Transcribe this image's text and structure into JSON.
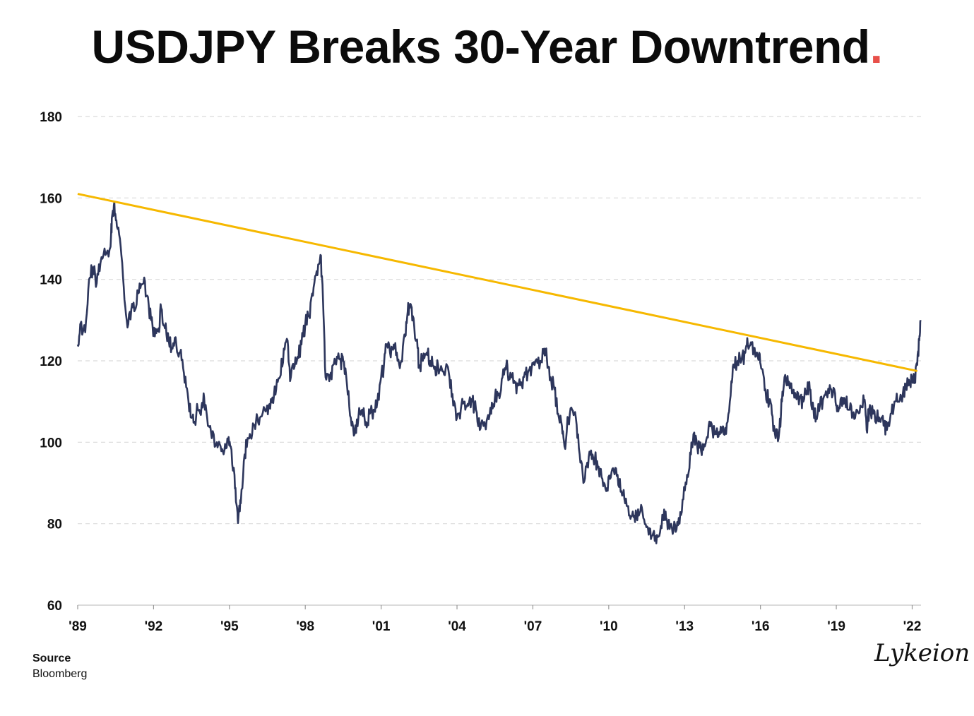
{
  "colors": {
    "line": "#2d365c",
    "trend": "#f6b800",
    "grid": "#d9d9d9",
    "accent_dot": "#e8504a"
  },
  "source": {
    "label": "Source",
    "value": "Bloomberg"
  },
  "signature": "Lykeion",
  "chart_data": {
    "type": "line",
    "title": "USDJPY Breaks 30-Year Downtrend",
    "title_dot": ".",
    "xlabel": "",
    "ylabel": "",
    "ylim": [
      60,
      180
    ],
    "yticks": [
      60,
      80,
      100,
      120,
      140,
      160,
      180
    ],
    "xlim": [
      1989.0,
      2022.35
    ],
    "xticks": [
      {
        "x": 1989,
        "label": "'89"
      },
      {
        "x": 1992,
        "label": "'92"
      },
      {
        "x": 1995,
        "label": "'95"
      },
      {
        "x": 1998,
        "label": "'98"
      },
      {
        "x": 2001,
        "label": "'01"
      },
      {
        "x": 2004,
        "label": "'04"
      },
      {
        "x": 2007,
        "label": "'07"
      },
      {
        "x": 2010,
        "label": "'10"
      },
      {
        "x": 2013,
        "label": "'13"
      },
      {
        "x": 2016,
        "label": "'16"
      },
      {
        "x": 2019,
        "label": "'19"
      },
      {
        "x": 2022,
        "label": "'22"
      }
    ],
    "grid": true,
    "series": [
      {
        "name": "USDJPY",
        "points": [
          [
            1989.0,
            124
          ],
          [
            1989.1,
            129
          ],
          [
            1989.3,
            127
          ],
          [
            1989.45,
            140
          ],
          [
            1989.6,
            143
          ],
          [
            1989.75,
            139
          ],
          [
            1989.9,
            144
          ],
          [
            1990.1,
            146
          ],
          [
            1990.3,
            148
          ],
          [
            1990.35,
            155
          ],
          [
            1990.45,
            159
          ],
          [
            1990.55,
            153
          ],
          [
            1990.7,
            148
          ],
          [
            1990.85,
            135
          ],
          [
            1991.0,
            129
          ],
          [
            1991.15,
            134
          ],
          [
            1991.3,
            133
          ],
          [
            1991.45,
            139
          ],
          [
            1991.6,
            139
          ],
          [
            1991.75,
            136
          ],
          [
            1991.9,
            130
          ],
          [
            1992.05,
            126
          ],
          [
            1992.2,
            128
          ],
          [
            1992.3,
            133
          ],
          [
            1992.45,
            128
          ],
          [
            1992.6,
            125
          ],
          [
            1992.75,
            123
          ],
          [
            1992.9,
            124
          ],
          [
            1993.05,
            122
          ],
          [
            1993.2,
            117
          ],
          [
            1993.35,
            112
          ],
          [
            1993.5,
            106
          ],
          [
            1993.6,
            105
          ],
          [
            1993.75,
            108
          ],
          [
            1993.9,
            109
          ],
          [
            1994.0,
            111
          ],
          [
            1994.15,
            104
          ],
          [
            1994.3,
            101
          ],
          [
            1994.5,
            100
          ],
          [
            1994.65,
            99
          ],
          [
            1994.8,
            98
          ],
          [
            1994.95,
            100
          ],
          [
            1995.05,
            99
          ],
          [
            1995.2,
            92
          ],
          [
            1995.3,
            84
          ],
          [
            1995.35,
            81
          ],
          [
            1995.45,
            85
          ],
          [
            1995.6,
            97
          ],
          [
            1995.75,
            101
          ],
          [
            1995.9,
            102
          ],
          [
            1996.05,
            105
          ],
          [
            1996.2,
            106
          ],
          [
            1996.4,
            108
          ],
          [
            1996.55,
            109
          ],
          [
            1996.7,
            111
          ],
          [
            1996.85,
            113
          ],
          [
            1997.0,
            116
          ],
          [
            1997.15,
            123
          ],
          [
            1997.3,
            125
          ],
          [
            1997.4,
            115
          ],
          [
            1997.55,
            118
          ],
          [
            1997.7,
            121
          ],
          [
            1997.85,
            124
          ],
          [
            1998.0,
            129
          ],
          [
            1998.15,
            131
          ],
          [
            1998.3,
            136
          ],
          [
            1998.45,
            142
          ],
          [
            1998.6,
            146
          ],
          [
            1998.7,
            135
          ],
          [
            1998.8,
            116
          ],
          [
            1998.95,
            115
          ],
          [
            1999.1,
            119
          ],
          [
            1999.25,
            121
          ],
          [
            1999.4,
            120
          ],
          [
            1999.5,
            120
          ],
          [
            1999.65,
            114
          ],
          [
            1999.8,
            106
          ],
          [
            1999.95,
            102
          ],
          [
            2000.1,
            106
          ],
          [
            2000.25,
            108
          ],
          [
            2000.4,
            105
          ],
          [
            2000.55,
            107
          ],
          [
            2000.7,
            108
          ],
          [
            2000.85,
            110
          ],
          [
            2001.0,
            116
          ],
          [
            2001.1,
            118
          ],
          [
            2001.2,
            124
          ],
          [
            2001.35,
            122
          ],
          [
            2001.5,
            124
          ],
          [
            2001.65,
            120
          ],
          [
            2001.8,
            120
          ],
          [
            2001.95,
            126
          ],
          [
            2002.05,
            132
          ],
          [
            2002.15,
            134
          ],
          [
            2002.25,
            131
          ],
          [
            2002.4,
            125
          ],
          [
            2002.5,
            119
          ],
          [
            2002.65,
            120
          ],
          [
            2002.8,
            122
          ],
          [
            2002.95,
            120
          ],
          [
            2003.1,
            118
          ],
          [
            2003.25,
            119
          ],
          [
            2003.4,
            118
          ],
          [
            2003.55,
            118
          ],
          [
            2003.7,
            116
          ],
          [
            2003.85,
            109
          ],
          [
            2004.0,
            106
          ],
          [
            2004.15,
            108
          ],
          [
            2004.3,
            110
          ],
          [
            2004.45,
            109
          ],
          [
            2004.6,
            110
          ],
          [
            2004.75,
            108
          ],
          [
            2004.9,
            103
          ],
          [
            2005.05,
            104
          ],
          [
            2005.2,
            106
          ],
          [
            2005.35,
            107
          ],
          [
            2005.5,
            111
          ],
          [
            2005.65,
            112
          ],
          [
            2005.8,
            116
          ],
          [
            2005.95,
            119
          ],
          [
            2006.05,
            116
          ],
          [
            2006.2,
            117
          ],
          [
            2006.35,
            112
          ],
          [
            2006.5,
            114
          ],
          [
            2006.65,
            116
          ],
          [
            2006.8,
            117
          ],
          [
            2006.95,
            118
          ],
          [
            2007.1,
            120
          ],
          [
            2007.3,
            120
          ],
          [
            2007.45,
            123
          ],
          [
            2007.55,
            121
          ],
          [
            2007.7,
            116
          ],
          [
            2007.85,
            113
          ],
          [
            2008.0,
            107
          ],
          [
            2008.15,
            104
          ],
          [
            2008.25,
            99
          ],
          [
            2008.4,
            106
          ],
          [
            2008.55,
            108
          ],
          [
            2008.7,
            106
          ],
          [
            2008.85,
            97
          ],
          [
            2009.0,
            90
          ],
          [
            2009.15,
            95
          ],
          [
            2009.3,
            98
          ],
          [
            2009.45,
            96
          ],
          [
            2009.6,
            94
          ],
          [
            2009.75,
            91
          ],
          [
            2009.9,
            88
          ],
          [
            2010.05,
            91
          ],
          [
            2010.2,
            93
          ],
          [
            2010.35,
            92
          ],
          [
            2010.5,
            88
          ],
          [
            2010.65,
            85
          ],
          [
            2010.8,
            82
          ],
          [
            2010.95,
            83
          ],
          [
            2011.1,
            82
          ],
          [
            2011.25,
            83
          ],
          [
            2011.4,
            81
          ],
          [
            2011.55,
            79
          ],
          [
            2011.7,
            77
          ],
          [
            2011.85,
            77
          ],
          [
            2012.0,
            77
          ],
          [
            2012.15,
            81
          ],
          [
            2012.25,
            83
          ],
          [
            2012.35,
            80
          ],
          [
            2012.5,
            79
          ],
          [
            2012.65,
            78
          ],
          [
            2012.8,
            80
          ],
          [
            2012.95,
            86
          ],
          [
            2013.1,
            92
          ],
          [
            2013.25,
            97
          ],
          [
            2013.35,
            102
          ],
          [
            2013.5,
            99
          ],
          [
            2013.65,
            98
          ],
          [
            2013.8,
            99
          ],
          [
            2013.95,
            104
          ],
          [
            2014.1,
            103
          ],
          [
            2014.25,
            102
          ],
          [
            2014.4,
            102
          ],
          [
            2014.55,
            102
          ],
          [
            2014.7,
            105
          ],
          [
            2014.85,
            115
          ],
          [
            2014.95,
            119
          ],
          [
            2015.1,
            120
          ],
          [
            2015.25,
            120
          ],
          [
            2015.4,
            122
          ],
          [
            2015.5,
            124
          ],
          [
            2015.65,
            124
          ],
          [
            2015.8,
            121
          ],
          [
            2015.95,
            122
          ],
          [
            2016.05,
            118
          ],
          [
            2016.2,
            113
          ],
          [
            2016.35,
            110
          ],
          [
            2016.45,
            107
          ],
          [
            2016.6,
            101
          ],
          [
            2016.75,
            103
          ],
          [
            2016.85,
            110
          ],
          [
            2016.95,
            116
          ],
          [
            2017.1,
            114
          ],
          [
            2017.25,
            112
          ],
          [
            2017.4,
            111
          ],
          [
            2017.55,
            111
          ],
          [
            2017.7,
            110
          ],
          [
            2017.85,
            113
          ],
          [
            2017.95,
            113
          ],
          [
            2018.1,
            108
          ],
          [
            2018.2,
            106
          ],
          [
            2018.35,
            109
          ],
          [
            2018.5,
            111
          ],
          [
            2018.65,
            111
          ],
          [
            2018.8,
            113
          ],
          [
            2018.95,
            112
          ],
          [
            2019.05,
            109
          ],
          [
            2019.2,
            111
          ],
          [
            2019.35,
            110
          ],
          [
            2019.5,
            108
          ],
          [
            2019.65,
            107
          ],
          [
            2019.8,
            108
          ],
          [
            2019.95,
            109
          ],
          [
            2020.1,
            110
          ],
          [
            2020.2,
            103
          ],
          [
            2020.3,
            108
          ],
          [
            2020.45,
            107
          ],
          [
            2020.6,
            106
          ],
          [
            2020.75,
            105
          ],
          [
            2020.9,
            104
          ],
          [
            2021.0,
            103
          ],
          [
            2021.15,
            107
          ],
          [
            2021.3,
            110
          ],
          [
            2021.45,
            110
          ],
          [
            2021.6,
            110
          ],
          [
            2021.75,
            114
          ],
          [
            2021.9,
            114
          ],
          [
            2022.0,
            115
          ],
          [
            2022.1,
            115
          ],
          [
            2022.2,
            119
          ],
          [
            2022.28,
            125
          ],
          [
            2022.33,
            130
          ]
        ]
      },
      {
        "name": "30-Year Downtrend",
        "points": [
          [
            1989.0,
            161
          ],
          [
            2022.2,
            117.5
          ]
        ]
      }
    ]
  }
}
